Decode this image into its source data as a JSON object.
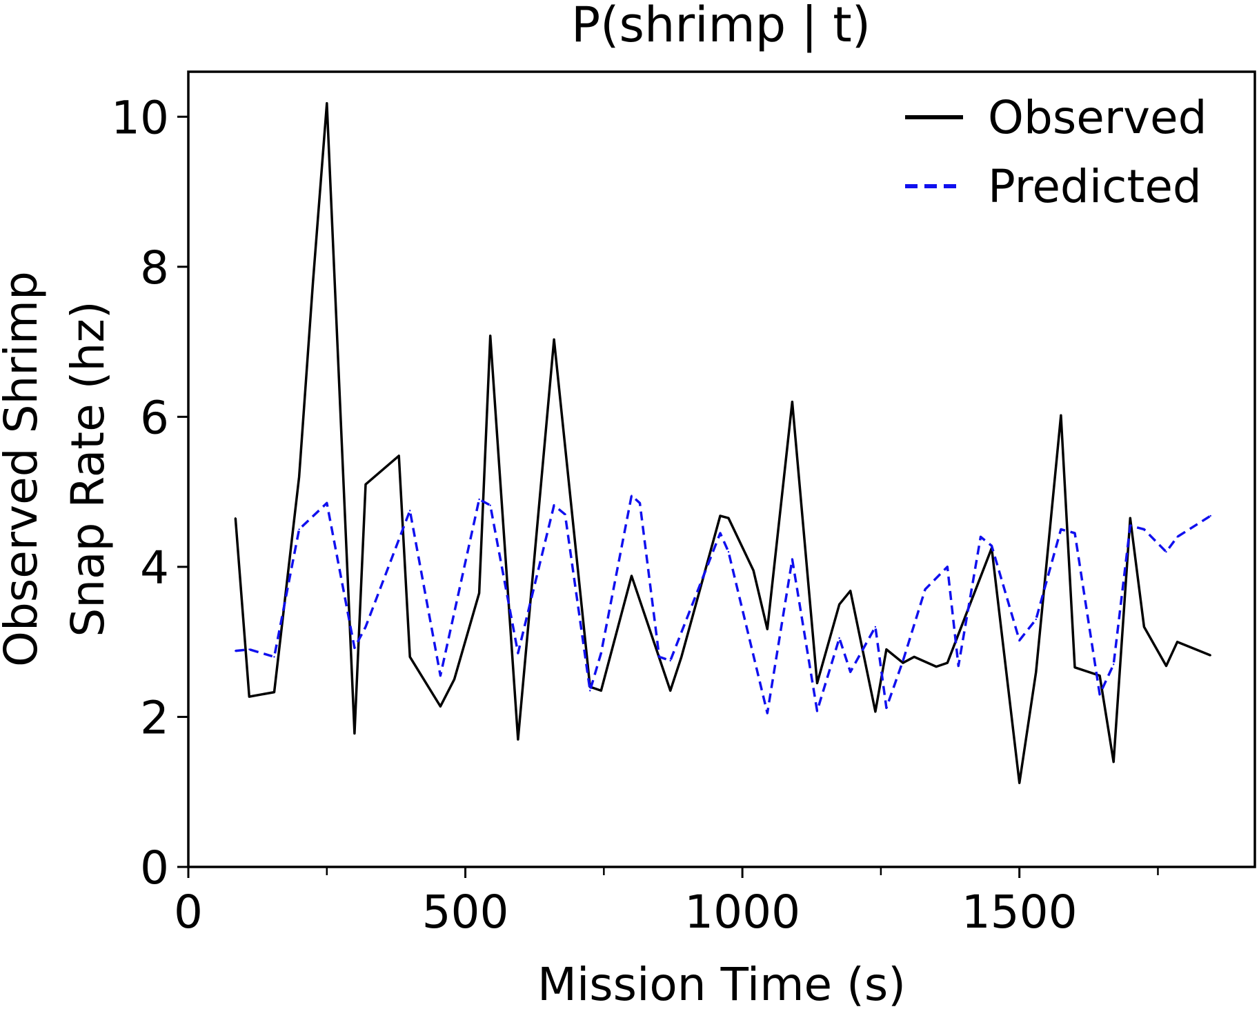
{
  "chart_data": {
    "type": "line",
    "title": "P(shrimp | t)",
    "xlabel": "Mission Time (s)",
    "ylabel_lines": [
      "Observed Shrimp",
      "Snap Rate (hz)"
    ],
    "xlim": [
      0,
      1925
    ],
    "ylim": [
      0,
      10.6
    ],
    "xticks": [
      0,
      500,
      1000,
      1500
    ],
    "xticks_minor": [
      250,
      750,
      1250,
      1750
    ],
    "yticks": [
      0,
      2,
      4,
      6,
      8,
      10
    ],
    "legend_position": "top-right",
    "grid": false,
    "series": [
      {
        "name": "Observed",
        "color": "#000000",
        "style": "solid",
        "x": [
          85,
          110,
          155,
          200,
          225,
          250,
          300,
          320,
          380,
          400,
          455,
          480,
          525,
          545,
          595,
          660,
          725,
          745,
          800,
          870,
          890,
          960,
          975,
          1020,
          1045,
          1090,
          1135,
          1175,
          1195,
          1240,
          1260,
          1290,
          1310,
          1350,
          1370,
          1450,
          1500,
          1530,
          1575,
          1600,
          1645,
          1670,
          1700,
          1725,
          1765,
          1785,
          1845
        ],
        "y": [
          4.65,
          2.27,
          2.33,
          5.2,
          7.8,
          10.18,
          1.78,
          5.1,
          5.48,
          2.8,
          2.14,
          2.5,
          3.65,
          7.08,
          1.7,
          7.03,
          2.4,
          2.35,
          3.88,
          2.35,
          2.8,
          4.68,
          4.65,
          3.95,
          3.17,
          6.2,
          2.45,
          3.5,
          3.68,
          2.07,
          2.9,
          2.72,
          2.8,
          2.67,
          2.72,
          4.25,
          1.12,
          2.6,
          6.02,
          2.66,
          2.55,
          1.4,
          4.65,
          3.2,
          2.68,
          3.0,
          2.82
        ]
      },
      {
        "name": "Predicted",
        "color": "#1010ee",
        "style": "dashed",
        "x": [
          85,
          110,
          155,
          200,
          250,
          300,
          320,
          400,
          455,
          525,
          545,
          595,
          660,
          680,
          725,
          745,
          800,
          815,
          850,
          870,
          960,
          975,
          1045,
          1090,
          1135,
          1175,
          1195,
          1240,
          1260,
          1290,
          1330,
          1370,
          1390,
          1430,
          1450,
          1500,
          1530,
          1575,
          1600,
          1645,
          1670,
          1700,
          1725,
          1765,
          1785,
          1845
        ],
        "y": [
          2.88,
          2.9,
          2.8,
          4.5,
          4.85,
          2.92,
          3.2,
          4.75,
          2.55,
          4.9,
          4.82,
          2.85,
          4.82,
          4.7,
          2.35,
          2.85,
          4.95,
          4.85,
          2.8,
          2.75,
          4.45,
          4.2,
          2.05,
          4.1,
          2.08,
          3.05,
          2.6,
          3.2,
          2.12,
          2.75,
          3.7,
          4.0,
          2.68,
          4.4,
          4.28,
          3.02,
          3.3,
          4.5,
          4.45,
          2.3,
          2.7,
          4.55,
          4.5,
          4.2,
          4.4,
          4.68
        ]
      }
    ]
  }
}
